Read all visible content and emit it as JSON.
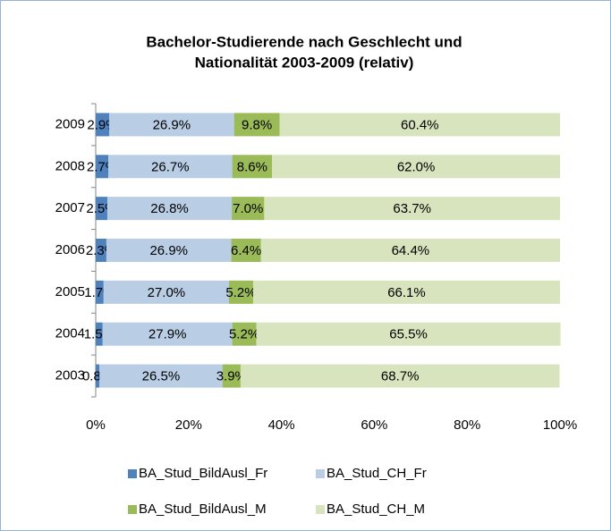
{
  "chart_data": {
    "type": "stacked-barh",
    "title": [
      "Bachelor-Studierende nach Geschlecht und",
      "Nationalität  2003-2009 (relativ)"
    ],
    "categories": [
      "2009",
      "2008",
      "2007",
      "2006",
      "2005",
      "2004",
      "2003"
    ],
    "series": [
      {
        "name": "BA_Stud_BildAusl_Fr",
        "color": "#4f81bd",
        "values": [
          2.9,
          2.7,
          2.5,
          2.3,
          1.7,
          1.5,
          0.8
        ],
        "value_labels": [
          "2.9%",
          "2.7%",
          "2.5%",
          "2.3%",
          "1.7%",
          "1.5%",
          "0.8%"
        ]
      },
      {
        "name": "BA_Stud_CH_Fr",
        "color": "#b9cde5",
        "values": [
          26.9,
          26.7,
          26.8,
          26.9,
          27.0,
          27.9,
          26.5
        ],
        "value_labels": [
          "26.9%",
          "26.7%",
          "26.8%",
          "26.9%",
          "27.0%",
          "27.9%",
          "26.5%"
        ]
      },
      {
        "name": "BA_Stud_BildAusl_M",
        "color": "#9bbb59",
        "values": [
          9.8,
          8.6,
          7.0,
          6.4,
          5.2,
          5.2,
          3.9
        ],
        "value_labels": [
          "9.8%",
          "8.6%",
          "7.0%",
          "6.4%",
          "5.2%",
          "5.2%",
          "3.9%"
        ]
      },
      {
        "name": "BA_Stud_CH_M",
        "color": "#d7e4bd",
        "values": [
          60.4,
          62.0,
          63.7,
          64.4,
          66.1,
          65.5,
          68.7
        ],
        "value_labels": [
          "60.4%",
          "62.0%",
          "63.7%",
          "64.4%",
          "66.1%",
          "65.5%",
          "68.7%"
        ]
      }
    ],
    "xlim": [
      0,
      100
    ],
    "xticks": [
      {
        "value": 0,
        "label": "0%"
      },
      {
        "value": 20,
        "label": "20%"
      },
      {
        "value": 40,
        "label": "40%"
      },
      {
        "value": 60,
        "label": "60%"
      },
      {
        "value": 80,
        "label": "80%"
      },
      {
        "value": 100,
        "label": "100%"
      }
    ]
  }
}
